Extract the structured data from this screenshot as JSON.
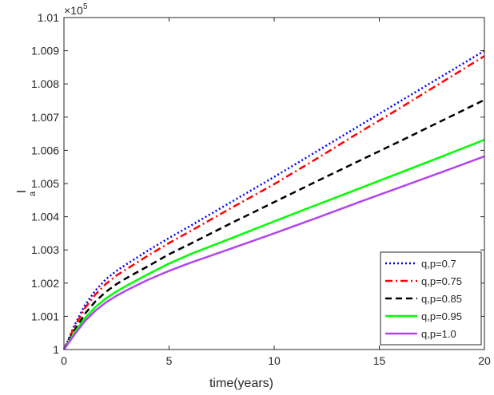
{
  "chart_data": {
    "type": "line",
    "xlabel": "time(years)",
    "ylabel": "I",
    "ylabel_subscript": "a",
    "exponent_base": "×10",
    "exponent_power": "5",
    "xlim": [
      0,
      20
    ],
    "ylim": [
      1.0,
      1.01
    ],
    "xticks": [
      0,
      5,
      10,
      15,
      20
    ],
    "xtick_labels": [
      "0",
      "5",
      "10",
      "15",
      "20"
    ],
    "yticks": [
      1.0,
      1.001,
      1.002,
      1.003,
      1.004,
      1.005,
      1.006,
      1.007,
      1.008,
      1.009,
      1.01
    ],
    "ytick_labels": [
      "1",
      "1.001",
      "1.002",
      "1.003",
      "1.004",
      "1.005",
      "1.006",
      "1.007",
      "1.008",
      "1.009",
      "1.01"
    ],
    "grid": false,
    "legend_position": "bottom-right",
    "x": [
      0,
      0.5,
      1,
      1.5,
      2,
      2.5,
      3,
      4,
      5,
      6,
      8,
      10,
      12,
      14,
      16,
      18,
      20
    ],
    "series": [
      {
        "name": "q,p=0.7",
        "color": "#0000ff",
        "dash": "dotted",
        "values": [
          1.0,
          1.00073,
          1.00134,
          1.00178,
          1.00212,
          1.00237,
          1.00258,
          1.00298,
          1.00336,
          1.00372,
          1.00446,
          1.0052,
          1.00596,
          1.00672,
          1.00748,
          1.00824,
          1.009
        ]
      },
      {
        "name": "q,p=0.75",
        "color": "#ff0000",
        "dash": "dashdot",
        "values": [
          1.0,
          1.00068,
          1.00125,
          1.00166,
          1.00198,
          1.00223,
          1.00243,
          1.00283,
          1.00321,
          1.00356,
          1.00428,
          1.00498,
          1.00574,
          1.00652,
          1.00728,
          1.00806,
          1.00884
        ]
      },
      {
        "name": "q,p=0.85",
        "color": "#000000",
        "dash": "dashed",
        "values": [
          1.0,
          1.00058,
          1.00108,
          1.00145,
          1.00174,
          1.00197,
          1.00216,
          1.00251,
          1.00287,
          1.00318,
          1.00382,
          1.00444,
          1.00506,
          1.00567,
          1.00628,
          1.0069,
          1.00752
        ]
      },
      {
        "name": "q,p=0.95",
        "color": "#00ff00",
        "dash": "solid",
        "values": [
          1.0,
          1.00051,
          1.00095,
          1.00128,
          1.00154,
          1.00175,
          1.00193,
          1.00227,
          1.00259,
          1.00287,
          1.00336,
          1.00386,
          1.00435,
          1.00484,
          1.00533,
          1.00582,
          1.00632
        ]
      },
      {
        "name": "q,p=1.0",
        "color": "#b146f0",
        "dash": "solid",
        "values": [
          1.0,
          1.00045,
          1.00086,
          1.00117,
          1.00142,
          1.00162,
          1.00179,
          1.0021,
          1.00237,
          1.00261,
          1.00305,
          1.0035,
          1.00396,
          1.00443,
          1.00489,
          1.00535,
          1.00582
        ]
      }
    ]
  }
}
